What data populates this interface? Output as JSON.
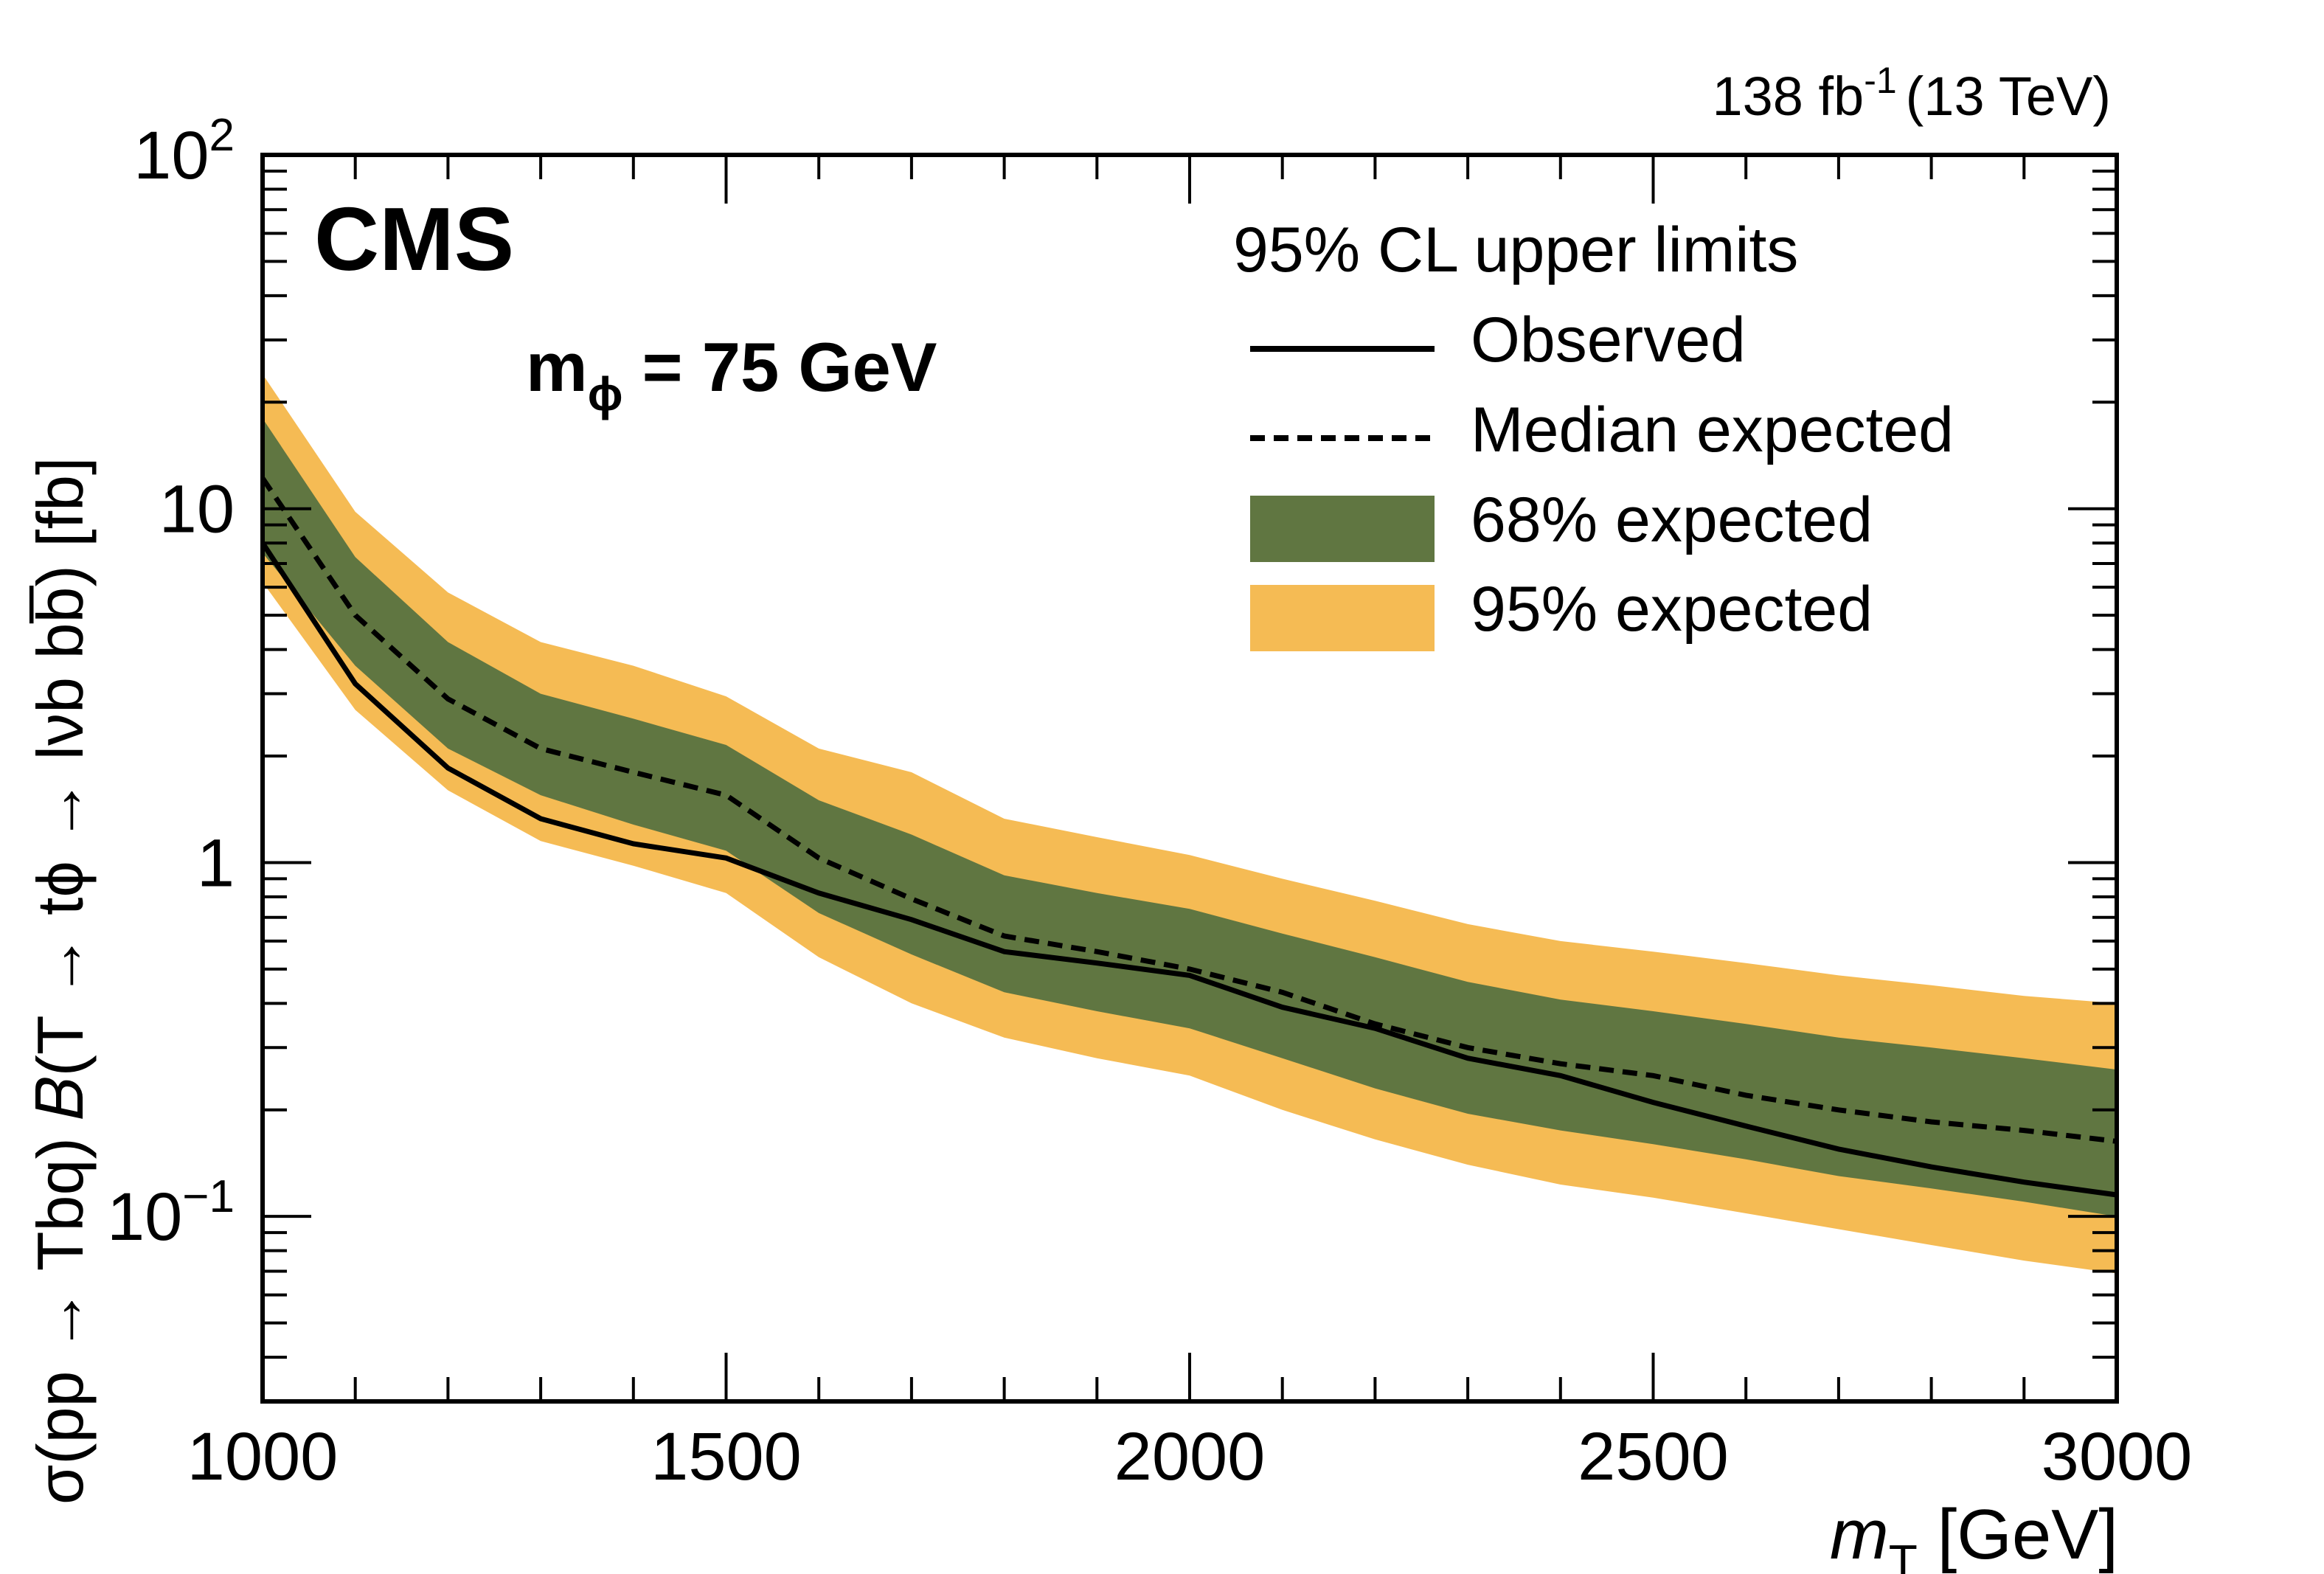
{
  "chart_data": {
    "type": "line",
    "experiment": "CMS",
    "luminosity": "138 fb",
    "luminosity_exp": "-1",
    "energy": "(13 TeV)",
    "annotation": {
      "prefix": "m",
      "subscript": "ϕ",
      "text": " = 75 GeV"
    },
    "legend": {
      "title": "95% CL upper limits",
      "position": "top-right",
      "entries": [
        "Observed",
        "Median expected",
        "68% expected",
        "95% expected"
      ]
    },
    "xlabel": "m",
    "xlabel_sub": "T",
    "xlabel_unit": " [GeV]",
    "ylabel": "σ(pp → Tbq) 𝐵(T → tϕ → lνb  bb̅) [fb]",
    "xlim": [
      1000,
      3000
    ],
    "ylim": [
      0.03,
      100
    ],
    "yscale": "log",
    "grid": false,
    "x_ticks": [
      1000,
      1500,
      2000,
      2500,
      3000
    ],
    "y_ticks": [
      {
        "value": 100,
        "base": "10",
        "exp": "2"
      },
      {
        "value": 10,
        "base": "10",
        "exp": ""
      },
      {
        "value": 1,
        "base": "1",
        "exp": ""
      },
      {
        "value": 0.1,
        "base": "10",
        "exp": "−1"
      }
    ],
    "colors": {
      "observed": "#000000",
      "expected": "#000000",
      "band68": "#607641",
      "band95": "#F5BB54"
    },
    "x": [
      1000,
      1100,
      1200,
      1300,
      1400,
      1500,
      1600,
      1700,
      1800,
      1900,
      2000,
      2100,
      2200,
      2300,
      2400,
      2500,
      2600,
      2700,
      2800,
      2900,
      3000
    ],
    "series": [
      {
        "name": "Observed",
        "values": [
          8.0,
          3.2,
          1.85,
          1.33,
          1.13,
          1.03,
          0.82,
          0.69,
          0.56,
          0.52,
          0.48,
          0.39,
          0.34,
          0.28,
          0.25,
          0.21,
          0.18,
          0.155,
          0.138,
          0.125,
          0.115
        ]
      },
      {
        "name": "Median expected",
        "values": [
          12.2,
          5.0,
          2.9,
          2.1,
          1.8,
          1.55,
          1.03,
          0.79,
          0.62,
          0.56,
          0.5,
          0.43,
          0.35,
          0.3,
          0.27,
          0.25,
          0.22,
          0.2,
          0.185,
          0.175,
          0.163
        ]
      },
      {
        "name": "68% expected",
        "lower": [
          7.5,
          3.6,
          2.1,
          1.55,
          1.28,
          1.08,
          0.72,
          0.55,
          0.43,
          0.38,
          0.34,
          0.28,
          0.23,
          0.195,
          0.175,
          0.16,
          0.145,
          0.13,
          0.12,
          0.11,
          0.1
        ],
        "upper": [
          18.0,
          7.3,
          4.2,
          3.0,
          2.55,
          2.15,
          1.5,
          1.2,
          0.92,
          0.82,
          0.74,
          0.63,
          0.54,
          0.46,
          0.41,
          0.38,
          0.35,
          0.32,
          0.3,
          0.28,
          0.26
        ]
      },
      {
        "name": "95% expected",
        "lower": [
          6.2,
          2.7,
          1.6,
          1.15,
          0.98,
          0.82,
          0.54,
          0.4,
          0.32,
          0.28,
          0.25,
          0.2,
          0.165,
          0.14,
          0.123,
          0.113,
          0.102,
          0.092,
          0.083,
          0.075,
          0.069
        ],
        "upper": [
          24.0,
          9.8,
          5.8,
          4.2,
          3.6,
          2.95,
          2.1,
          1.8,
          1.33,
          1.18,
          1.05,
          0.9,
          0.78,
          0.67,
          0.6,
          0.56,
          0.52,
          0.48,
          0.45,
          0.42,
          0.4
        ]
      }
    ]
  }
}
